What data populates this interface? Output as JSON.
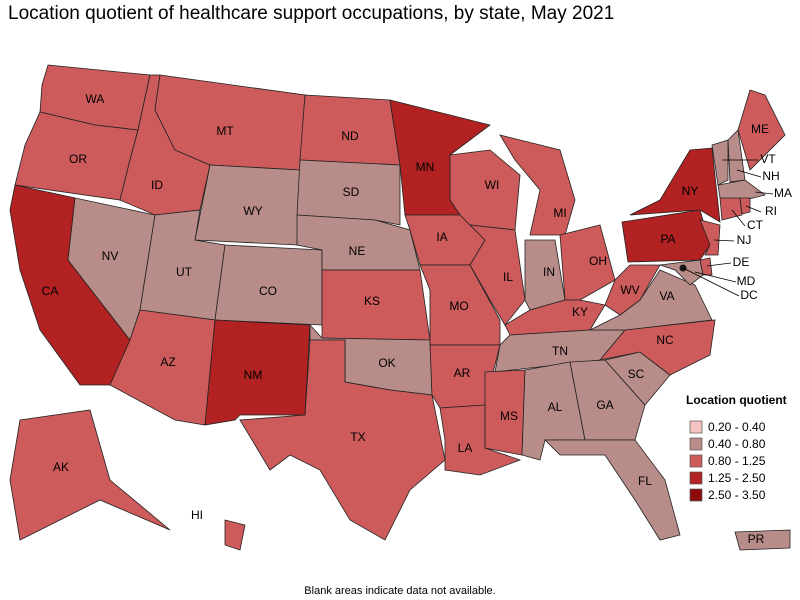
{
  "title": "Location quotient of healthcare support occupations, by state, May 2021",
  "legend": {
    "title": "Location quotient",
    "items": [
      {
        "label": "0.20 - 0.40",
        "color": "#f7c4c4"
      },
      {
        "label": "0.40 - 0.80",
        "color": "#b88c88"
      },
      {
        "label": "0.80 - 1.25",
        "color": "#cd5b5b"
      },
      {
        "label": "1.25 - 2.50",
        "color": "#b22222"
      },
      {
        "label": "2.50 - 3.50",
        "color": "#8b0a0a"
      }
    ]
  },
  "states": [
    {
      "abbr": "WA",
      "color": "#cd5b5b"
    },
    {
      "abbr": "OR",
      "color": "#cd5b5b"
    },
    {
      "abbr": "CA",
      "color": "#b22222"
    },
    {
      "abbr": "NV",
      "color": "#b88c88"
    },
    {
      "abbr": "ID",
      "color": "#cd5b5b"
    },
    {
      "abbr": "MT",
      "color": "#cd5b5b"
    },
    {
      "abbr": "WY",
      "color": "#b88c88"
    },
    {
      "abbr": "UT",
      "color": "#b88c88"
    },
    {
      "abbr": "CO",
      "color": "#b88c88"
    },
    {
      "abbr": "AZ",
      "color": "#cd5b5b"
    },
    {
      "abbr": "NM",
      "color": "#b22222"
    },
    {
      "abbr": "ND",
      "color": "#cd5b5b"
    },
    {
      "abbr": "SD",
      "color": "#b88c88"
    },
    {
      "abbr": "NE",
      "color": "#b88c88"
    },
    {
      "abbr": "KS",
      "color": "#cd5b5b"
    },
    {
      "abbr": "OK",
      "color": "#b88c88"
    },
    {
      "abbr": "TX",
      "color": "#cd5b5b"
    },
    {
      "abbr": "MN",
      "color": "#b22222"
    },
    {
      "abbr": "IA",
      "color": "#cd5b5b"
    },
    {
      "abbr": "MO",
      "color": "#cd5b5b"
    },
    {
      "abbr": "AR",
      "color": "#cd5b5b"
    },
    {
      "abbr": "LA",
      "color": "#cd5b5b"
    },
    {
      "abbr": "WI",
      "color": "#cd5b5b"
    },
    {
      "abbr": "IL",
      "color": "#cd5b5b"
    },
    {
      "abbr": "MI",
      "color": "#cd5b5b"
    },
    {
      "abbr": "IN",
      "color": "#b88c88"
    },
    {
      "abbr": "OH",
      "color": "#cd5b5b"
    },
    {
      "abbr": "KY",
      "color": "#cd5b5b"
    },
    {
      "abbr": "TN",
      "color": "#b88c88"
    },
    {
      "abbr": "MS",
      "color": "#cd5b5b"
    },
    {
      "abbr": "AL",
      "color": "#b88c88"
    },
    {
      "abbr": "GA",
      "color": "#b88c88"
    },
    {
      "abbr": "FL",
      "color": "#b88c88"
    },
    {
      "abbr": "SC",
      "color": "#b88c88"
    },
    {
      "abbr": "NC",
      "color": "#cd5b5b"
    },
    {
      "abbr": "VA",
      "color": "#b88c88"
    },
    {
      "abbr": "WV",
      "color": "#cd5b5b"
    },
    {
      "abbr": "PA",
      "color": "#b22222"
    },
    {
      "abbr": "NY",
      "color": "#b22222"
    },
    {
      "abbr": "VT",
      "color": "#b88c88"
    },
    {
      "abbr": "NH",
      "color": "#b88c88"
    },
    {
      "abbr": "ME",
      "color": "#cd5b5b"
    },
    {
      "abbr": "MA",
      "color": "#b88c88"
    },
    {
      "abbr": "CT",
      "color": "#cd5b5b"
    },
    {
      "abbr": "RI",
      "color": "#cd5b5b"
    },
    {
      "abbr": "NJ",
      "color": "#cd5b5b"
    },
    {
      "abbr": "DE",
      "color": "#cd5b5b"
    },
    {
      "abbr": "MD",
      "color": "#b88c88"
    },
    {
      "abbr": "DC",
      "color": "#1a1a1a"
    },
    {
      "abbr": "AK",
      "color": "#cd5b5b"
    },
    {
      "abbr": "HI",
      "color": "#cd5b5b"
    },
    {
      "abbr": "PR",
      "color": "#b88c88"
    }
  ],
  "footnote": "Blank areas indicate data not available."
}
